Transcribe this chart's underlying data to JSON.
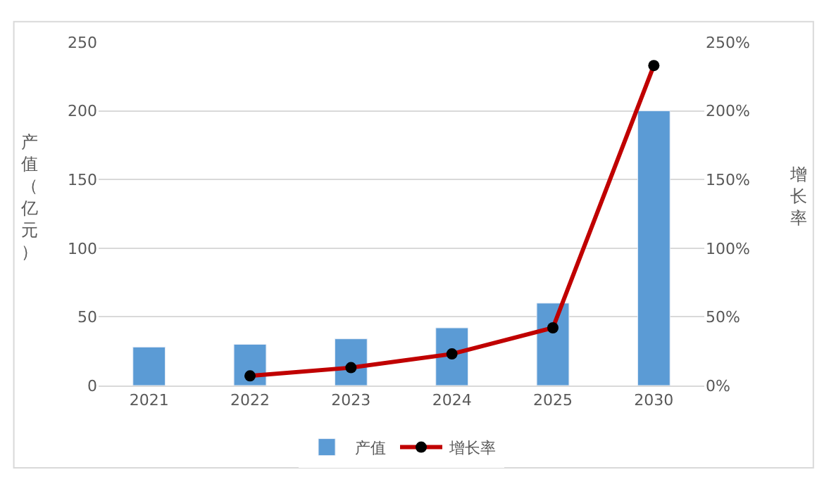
{
  "chart_data": {
    "type": "bar",
    "categories": [
      "2021",
      "2022",
      "2023",
      "2024",
      "2025",
      "2030"
    ],
    "ylabel": "产值（亿元）",
    "y2label": "增长率",
    "series": [
      {
        "name": "产值",
        "color": "#5b9bd5",
        "values": [
          28,
          30,
          34,
          42,
          60,
          200
        ]
      },
      {
        "name": "增长率",
        "type": "line",
        "axis": "y2",
        "color": "#c00000",
        "marker": "circle",
        "values": [
          null,
          7,
          13,
          23,
          42,
          233
        ]
      }
    ],
    "ylim": [
      0,
      250
    ],
    "yticks": [
      0,
      50,
      100,
      150,
      200,
      250
    ],
    "y2lim": [
      0,
      250
    ],
    "y2ticks": [
      {
        "value": 0,
        "label": "0%"
      },
      {
        "value": 50,
        "label": "50%"
      },
      {
        "value": 100,
        "label": "100%"
      },
      {
        "value": 150,
        "label": "150%"
      },
      {
        "value": 200,
        "label": "200%"
      },
      {
        "value": 250,
        "label": "250%"
      }
    ],
    "grid": "y",
    "legend": "bottom"
  }
}
